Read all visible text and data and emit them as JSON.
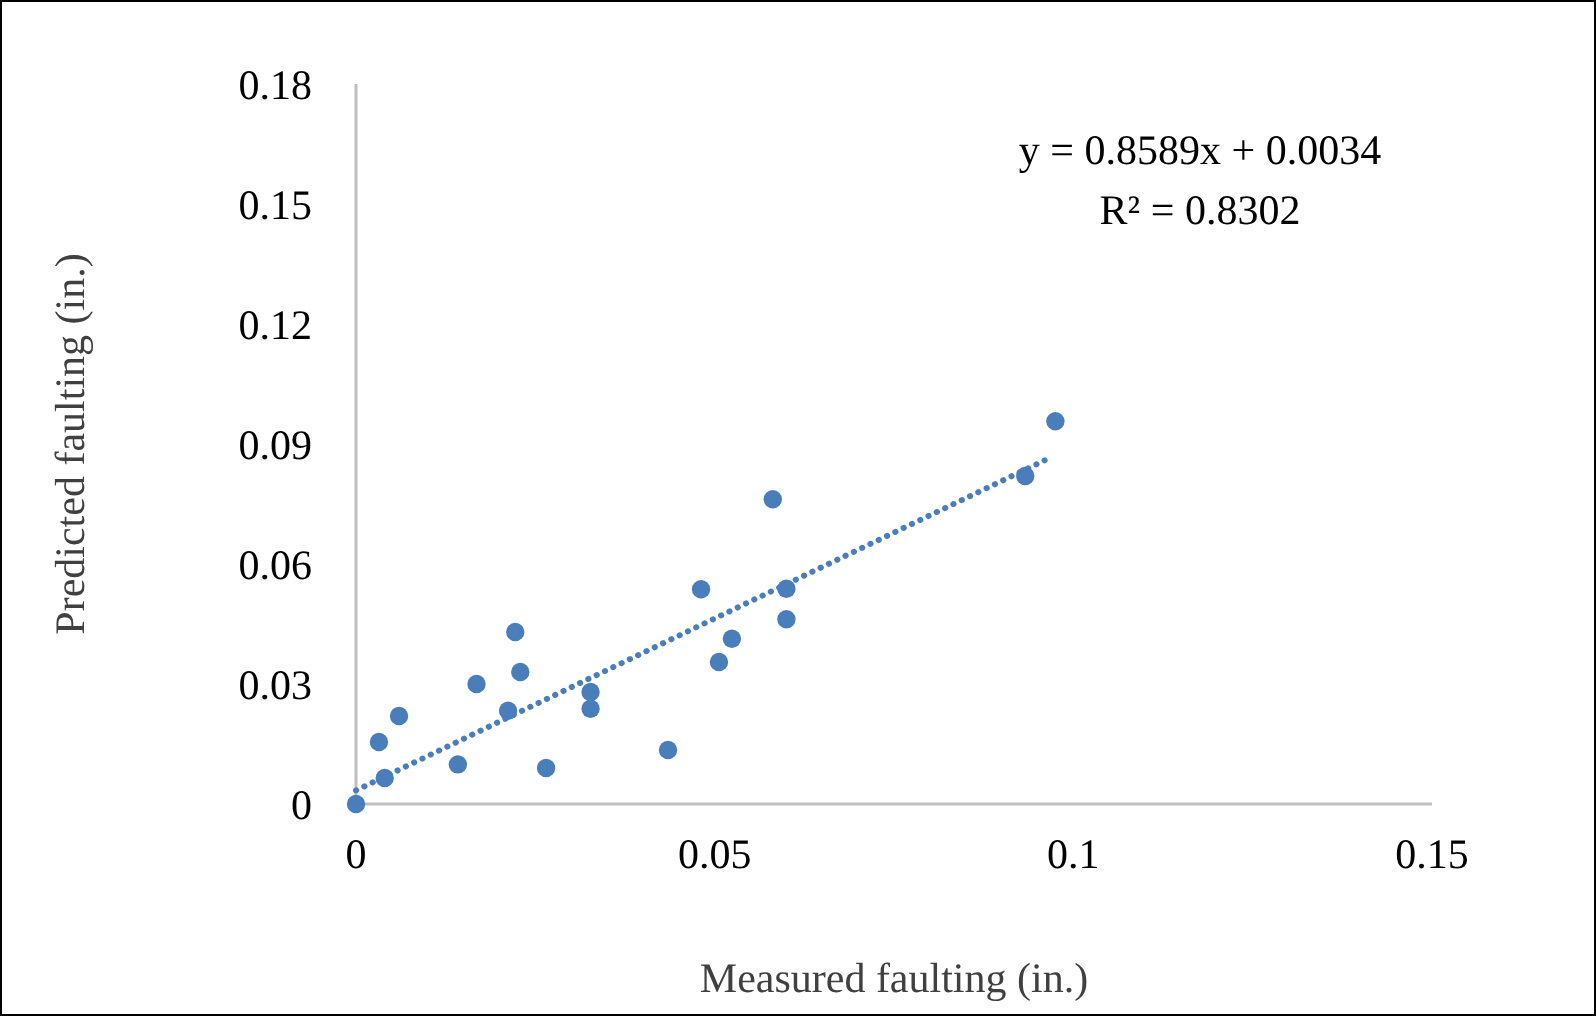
{
  "chart_data": {
    "type": "scatter",
    "xlabel": "Measured faulting (in.)",
    "ylabel": "Predicted faulting (in.)",
    "annotations": [
      "y = 0.8589x + 0.0034",
      "R² = 0.8302"
    ],
    "xlim": [
      0,
      0.15
    ],
    "xticks": [
      0,
      0.05,
      0.1,
      0.15
    ],
    "ylim": [
      0,
      0.18
    ],
    "yticks": [
      0,
      0.03,
      0.06,
      0.09,
      0.12,
      0.15,
      0.18
    ],
    "marker": "circle",
    "series": [
      {
        "color": "#4a7ebb",
        "x": [
          0,
          0.0032,
          0.004,
          0.006,
          0.0142,
          0.0168,
          0.0212,
          0.0222,
          0.0229,
          0.0265,
          0.0327,
          0.0327,
          0.0435,
          0.0481,
          0.0506,
          0.0524,
          0.0581,
          0.06,
          0.06,
          0.0933,
          0.0975
        ],
        "values": [
          0,
          0.0155,
          0.0065,
          0.022,
          0.0099,
          0.03,
          0.0233,
          0.043,
          0.033,
          0.009,
          0.028,
          0.0238,
          0.0135,
          0.0537,
          0.0355,
          0.0413,
          0.0762,
          0.0538,
          0.0462,
          0.082,
          0.0957
        ]
      },
      {
        "type": "line",
        "color": "#4a7ebb",
        "line_style": "dotted",
        "marker": "none",
        "x": [
          0,
          0.096
        ],
        "values": [
          0.0034,
          0.0859
        ]
      }
    ]
  }
}
